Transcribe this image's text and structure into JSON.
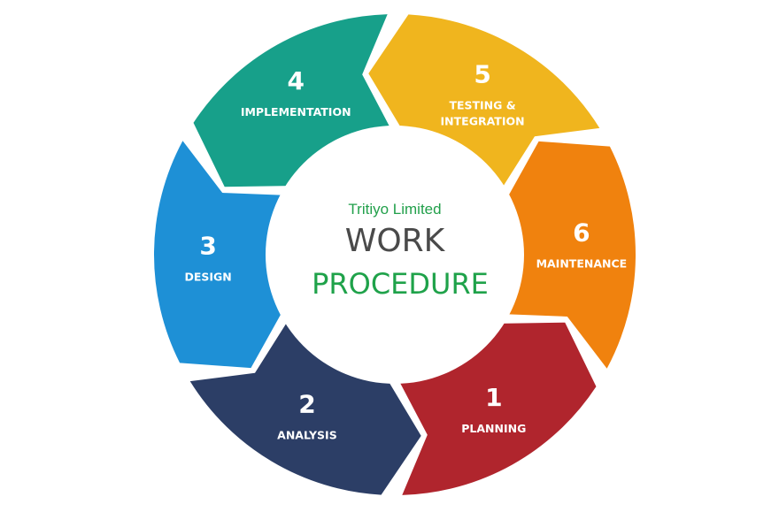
{
  "center": {
    "company": "Tritiyo Limited",
    "title": "WORK",
    "subtitle": "PROCEDURE",
    "company_color": "#22a04b",
    "title_color": "#4a4a4a",
    "subtitle_color": "#1fa24a"
  },
  "segments": [
    {
      "number": "1",
      "label_lines": [
        "PLANNING"
      ],
      "color": "#b0252d"
    },
    {
      "number": "2",
      "label_lines": [
        "ANALYSIS"
      ],
      "color": "#2c3e66"
    },
    {
      "number": "3",
      "label_lines": [
        "DESIGN"
      ],
      "color": "#1e90d6"
    },
    {
      "number": "4",
      "label_lines": [
        "IMPLEMENTATION"
      ],
      "color": "#17a08a"
    },
    {
      "number": "5",
      "label_lines": [
        "TESTING &",
        "INTEGRATION"
      ],
      "color": "#f0b51e"
    },
    {
      "number": "6",
      "label_lines": [
        "MAINTENANCE"
      ],
      "color": "#f0820e"
    }
  ]
}
